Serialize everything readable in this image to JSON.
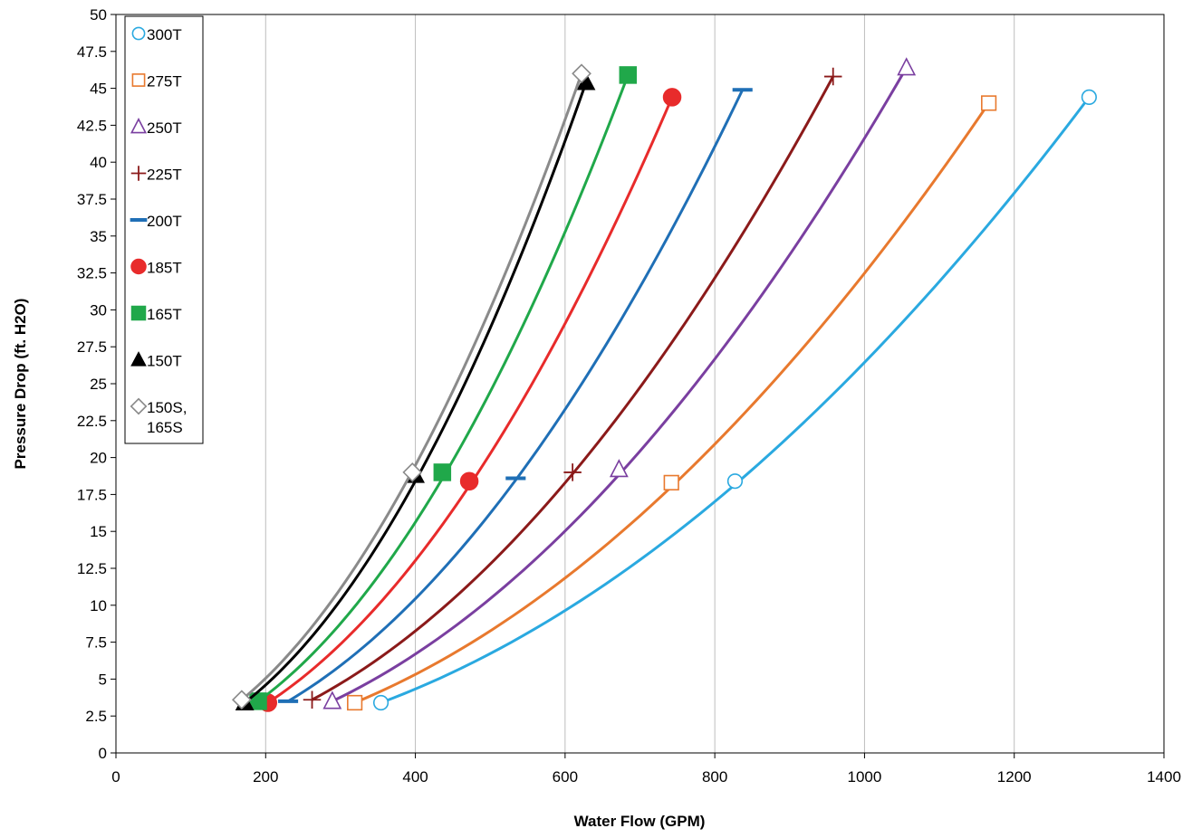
{
  "chart_data": {
    "type": "line",
    "xlabel": "Water Flow (GPM)",
    "ylabel": "Pressure Drop (ft. H2O)",
    "xlim": [
      0,
      1400
    ],
    "ylim": [
      0,
      50
    ],
    "x_ticks": [
      "0",
      "200",
      "400",
      "600",
      "800",
      "1000",
      "1200",
      "1400"
    ],
    "y_ticks": [
      "0",
      "2.5",
      "5",
      "7.5",
      "10",
      "12.5",
      "15",
      "17.5",
      "20",
      "22.5",
      "25",
      "27.5",
      "30",
      "32.5",
      "35",
      "37.5",
      "40",
      "42.5",
      "45",
      "47.5",
      "50"
    ],
    "grid": "vertical",
    "legend_position": "top-left",
    "series": [
      {
        "name": "300T",
        "color": "#2aa9e0",
        "marker": "circle-open",
        "x": [
          354,
          827,
          1300
        ],
        "y": [
          3.4,
          18.4,
          44.4
        ]
      },
      {
        "name": "275T",
        "color": "#e8792e",
        "marker": "square-open",
        "x": [
          319,
          742,
          1166
        ],
        "y": [
          3.4,
          18.3,
          44
        ]
      },
      {
        "name": "250T",
        "color": "#7a3fa0",
        "marker": "triangle-open",
        "x": [
          289,
          672,
          1056
        ],
        "y": [
          3.5,
          19.2,
          46.4
        ]
      },
      {
        "name": "225T",
        "color": "#8b1a1a",
        "marker": "plus",
        "x": [
          262,
          610,
          958
        ],
        "y": [
          3.6,
          19,
          45.8
        ]
      },
      {
        "name": "200T",
        "color": "#1f6fb6",
        "marker": "dash",
        "x": [
          230,
          534,
          837
        ],
        "y": [
          3.5,
          18.6,
          44.9
        ]
      },
      {
        "name": "185T",
        "color": "#e82b2b",
        "marker": "circle-filled",
        "x": [
          203,
          472,
          743
        ],
        "y": [
          3.4,
          18.4,
          44.4
        ]
      },
      {
        "name": "165T",
        "color": "#20a84a",
        "marker": "square-filled",
        "x": [
          190,
          436,
          684
        ],
        "y": [
          3.5,
          19,
          45.9
        ]
      },
      {
        "name": "150T",
        "color": "#000000",
        "marker": "triangle-filled",
        "x": [
          172,
          400,
          628
        ],
        "y": [
          3.4,
          18.8,
          45.4
        ]
      },
      {
        "name": "150S, 165S",
        "name_lines": [
          "150S,",
          "165S"
        ],
        "color": "#8a8a8a",
        "marker": "diamond-open",
        "x": [
          168,
          396,
          622
        ],
        "y": [
          3.6,
          19,
          46
        ]
      }
    ]
  }
}
